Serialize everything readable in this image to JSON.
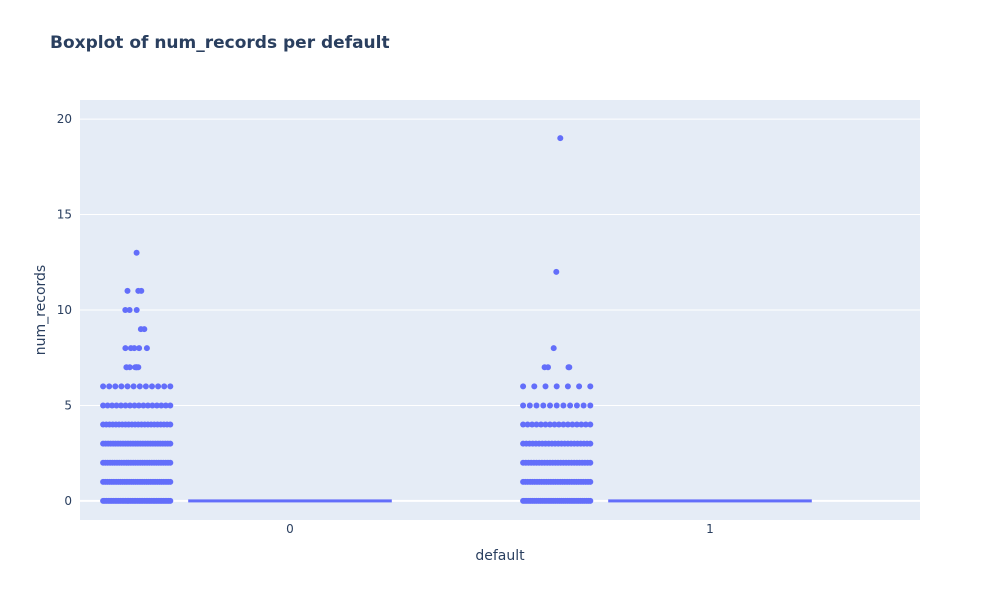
{
  "chart_data": {
    "type": "box",
    "title": "Boxplot of num_records per default",
    "xlabel": "default",
    "ylabel": "num_records",
    "categories": [
      "0",
      "1"
    ],
    "yticks": [
      0,
      5,
      10,
      15,
      20
    ],
    "ylim": [
      -1,
      21
    ],
    "grid": true,
    "legend": "none",
    "colors": {
      "marker": "#636efa",
      "plot_bg": "#e5ecf6",
      "grid": "#ffffff",
      "text": "#2a3f5f"
    },
    "series": [
      {
        "category": "0",
        "box": {
          "min": 0,
          "q1": 0,
          "median": 0,
          "q3": 0,
          "max": 0
        },
        "points": [
          {
            "y": 0,
            "n": 40
          },
          {
            "y": 1,
            "n": 32
          },
          {
            "y": 2,
            "n": 30
          },
          {
            "y": 3,
            "n": 28
          },
          {
            "y": 4,
            "n": 22
          },
          {
            "y": 5,
            "n": 16
          },
          {
            "y": 6,
            "n": 12
          },
          {
            "y": 7,
            "n": 6
          },
          {
            "y": 8,
            "n": 5
          },
          {
            "y": 9,
            "n": 2
          },
          {
            "y": 10,
            "n": 3
          },
          {
            "y": 11,
            "n": 3
          },
          {
            "y": 13,
            "n": 1
          }
        ]
      },
      {
        "category": "1",
        "box": {
          "min": 0,
          "q1": 0,
          "median": 0,
          "q3": 0,
          "max": 0
        },
        "points": [
          {
            "y": 0,
            "n": 36
          },
          {
            "y": 1,
            "n": 30
          },
          {
            "y": 2,
            "n": 26
          },
          {
            "y": 3,
            "n": 22
          },
          {
            "y": 4,
            "n": 16
          },
          {
            "y": 5,
            "n": 11
          },
          {
            "y": 6,
            "n": 7
          },
          {
            "y": 7,
            "n": 4
          },
          {
            "y": 8,
            "n": 1
          },
          {
            "y": 12,
            "n": 1
          },
          {
            "y": 19,
            "n": 1
          }
        ]
      }
    ]
  }
}
